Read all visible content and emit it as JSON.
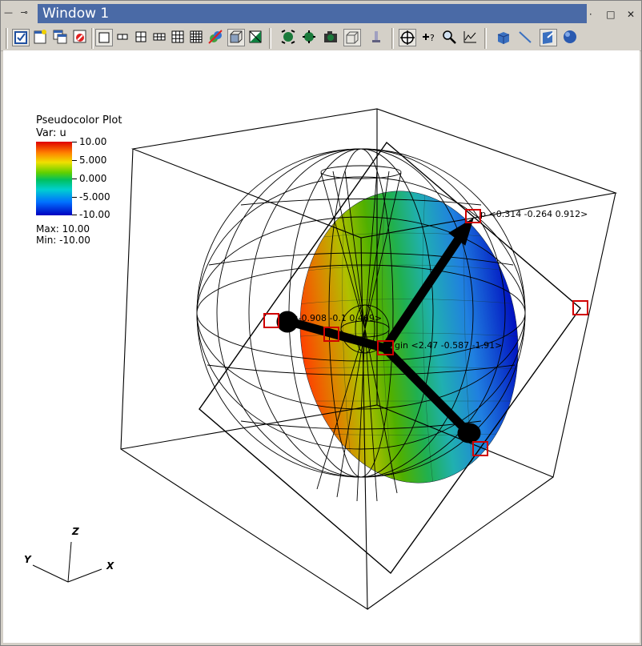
{
  "window": {
    "title": "Window 1",
    "left_controls": [
      "—",
      "⊸"
    ],
    "right_controls": [
      "·",
      "□",
      "✕"
    ]
  },
  "toolbar": {
    "buttons": [
      {
        "name": "active-window-toggle",
        "pressed": true
      },
      {
        "name": "new-window",
        "pressed": false
      },
      {
        "name": "clone-window",
        "pressed": false
      },
      {
        "name": "delete-window",
        "pressed": false
      },
      {
        "name": "layout-1x1",
        "pressed": true
      },
      {
        "name": "layout-1x2",
        "pressed": false
      },
      {
        "name": "layout-2x2",
        "pressed": false
      },
      {
        "name": "layout-2x3",
        "pressed": false
      },
      {
        "name": "layout-3x3",
        "pressed": false
      },
      {
        "name": "layout-4x4",
        "pressed": false
      },
      {
        "name": "lock-view",
        "pressed": false
      },
      {
        "name": "fullframe-mode",
        "pressed": true
      },
      {
        "name": "spin-mode",
        "pressed": false
      },
      {
        "name": "navigate-mode",
        "pressed": false
      },
      {
        "name": "zoom-mode",
        "pressed": false
      },
      {
        "name": "camera-mode",
        "pressed": false
      },
      {
        "name": "perspective-box",
        "pressed": true
      },
      {
        "name": "lineout-tool",
        "pressed": false
      },
      {
        "name": "navigate-compass",
        "pressed": false
      },
      {
        "name": "pick-query",
        "pressed": false
      },
      {
        "name": "zoom-lens",
        "pressed": false
      },
      {
        "name": "chart-tool",
        "pressed": false
      },
      {
        "name": "box-tool",
        "pressed": false
      },
      {
        "name": "line-tool",
        "pressed": false
      },
      {
        "name": "plane-tool",
        "pressed": true
      },
      {
        "name": "sphere-tool",
        "pressed": false
      }
    ]
  },
  "legend": {
    "title": "Pseudocolor Plot",
    "var_label": "Var:  u",
    "ticks": [
      "10.00",
      "5.000",
      "0.000",
      "-5.000",
      "-10.00"
    ],
    "max_label": "Max:  10.00",
    "min_label": "Min: -10.00"
  },
  "annotations": {
    "up_label": "p <0.314 -0.264 0.912>",
    "normal_label": "al <-0.908 -0.1  0.469>",
    "origin_label": "gin <2.47 -0.587 -1.91>"
  },
  "triad": {
    "x_label": "X",
    "y_label": "Y",
    "z_label": "Z"
  },
  "colors": {
    "title_bar": "#4a6aa6",
    "handle": "#d00000",
    "background": "#ffffff"
  }
}
